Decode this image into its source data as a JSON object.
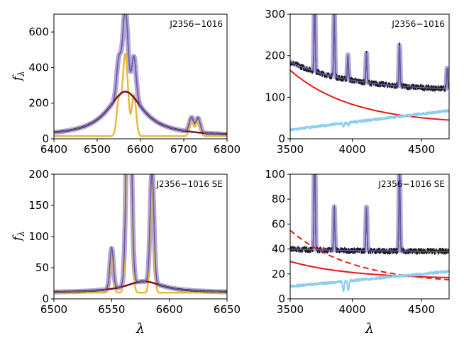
{
  "figure": {
    "x_axis_symbol": "λ",
    "y_axis_symbol": "f",
    "y_axis_subscript": "λ"
  },
  "colors": {
    "observed": "#1a1a1a",
    "model_fill": "#b3a7d9",
    "model_line": "#6a5aa6",
    "narrow_lines": "#e8b93c",
    "broad_component": "#7a0f2e",
    "continuum": "#e8191a",
    "stellar": "#8ccdf0"
  },
  "chart_data": [
    {
      "id": "top-left",
      "type": "line",
      "label": "J2356−1016",
      "xlim": [
        6400,
        6800
      ],
      "ylim": [
        0,
        700
      ],
      "xticks": [
        6400,
        6500,
        6600,
        6700,
        6800
      ],
      "yticks": [
        0,
        200,
        400,
        600
      ],
      "xlabel": "",
      "ylabel": "f_λ",
      "continuum_level": 15,
      "broad": {
        "center": 6565,
        "width": 50,
        "amplitude": 250
      },
      "narrow": [
        {
          "center": 6550,
          "width": 5,
          "amplitude": 200
        },
        {
          "center": 6565,
          "width": 6,
          "amplitude": 460
        },
        {
          "center": 6585,
          "width": 5,
          "amplitude": 230
        },
        {
          "center": 6718,
          "width": 5,
          "amplitude": 80
        },
        {
          "center": 6733,
          "width": 5,
          "amplitude": 80
        }
      ]
    },
    {
      "id": "top-right",
      "type": "line",
      "label": "J2356−1016",
      "xlim": [
        3550,
        4700
      ],
      "ylim": [
        0,
        300
      ],
      "xticks": [
        3500,
        4000,
        4500
      ],
      "yticks": [
        0,
        100,
        200,
        300
      ],
      "xlabel": "",
      "ylabel": "",
      "continuum_curve": {
        "start": 165,
        "end": 35
      },
      "stellar_curve": {
        "start": 22,
        "end": 68,
        "absorption": [
          3935,
          3970
        ]
      },
      "base_level": {
        "start": 185,
        "end": 115
      },
      "emission": [
        {
          "center": 3727,
          "amplitude": 200
        },
        {
          "center": 3869,
          "amplitude": 160
        },
        {
          "center": 3968,
          "amplitude": 60
        },
        {
          "center": 4102,
          "amplitude": 70
        },
        {
          "center": 4341,
          "amplitude": 100
        },
        {
          "center": 4686,
          "amplitude": 50
        }
      ]
    },
    {
      "id": "bottom-left",
      "type": "line",
      "label": "J2356−1016 SE",
      "xlim": [
        6500,
        6650
      ],
      "ylim": [
        0,
        200
      ],
      "xticks": [
        6500,
        6550,
        6600,
        6650
      ],
      "yticks": [
        0,
        50,
        100,
        150,
        200
      ],
      "xlabel": "λ",
      "ylabel": "f_λ",
      "continuum_level": 10,
      "broad": {
        "center": 6578,
        "width": 20,
        "amplitude": 18
      },
      "narrow": [
        {
          "center": 6550,
          "width": 1.5,
          "amplitude": 65
        },
        {
          "center": 6565,
          "width": 2.0,
          "amplitude": 420
        },
        {
          "center": 6585,
          "width": 1.6,
          "amplitude": 180
        }
      ]
    },
    {
      "id": "bottom-right",
      "type": "line",
      "label": "J2356−1016 SE",
      "xlim": [
        3550,
        4700
      ],
      "ylim": [
        0,
        100
      ],
      "xticks": [
        3500,
        4000,
        4500
      ],
      "yticks": [
        0,
        20,
        40,
        60,
        80,
        100
      ],
      "xlabel": "λ",
      "ylabel": "",
      "continuum_curve": {
        "start": 30,
        "end": 16
      },
      "continuum_dashed": {
        "start": 55,
        "end": 12
      },
      "stellar_curve": {
        "start": 10,
        "end": 22,
        "absorption": [
          3935,
          3970
        ]
      },
      "base_level": {
        "start": 40,
        "end": 38
      },
      "emission": [
        {
          "center": 3727,
          "amplitude": 100
        },
        {
          "center": 3869,
          "amplitude": 35
        },
        {
          "center": 4102,
          "amplitude": 35
        },
        {
          "center": 4341,
          "amplitude": 70
        }
      ]
    }
  ]
}
